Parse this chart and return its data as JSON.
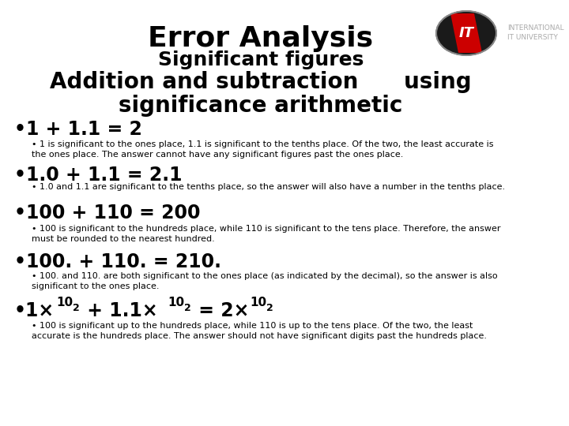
{
  "bg_color": "#ffffff",
  "title1": "Error Analysis",
  "title2": "Significant figures",
  "title3": "Addition and subtraction      using",
  "title4": "significance arithmetic",
  "bullet1_main": "•1 + 1.1 = 2",
  "bullet1_sub": "• 1 is significant to the ones place, 1.1 is significant to the tenths place. Of the two, the least accurate is\nthe ones place. The answer cannot have any significant figures past the ones place.",
  "bullet2_main": "•1.0 + 1.1 = 2.1",
  "bullet2_sub": "• 1.0 and 1.1 are significant to the tenths place, so the answer will also have a number in the tenths place.",
  "bullet3_main": "•100 + 110 = 200",
  "bullet3_sub": "• 100 is significant to the hundreds place, while 110 is significant to the tens place. Therefore, the answer\nmust be rounded to the nearest hundred.",
  "bullet4_main": "•100. + 110. = 210.",
  "bullet4_sub": "• 100. and 110. are both significant to the ones place (as indicated by the decimal), so the answer is also\nsignificant to the ones place.",
  "bullet5_sub": "• 100 is significant up to the hundreds place, while 110 is up to the tens place. Of the two, the least\naccurate is the hundreds place. The answer should not have significant digits past the hundreds place.",
  "logo_text1": "INTERNATIONAL",
  "logo_text2": "IT UNIVERSITY"
}
